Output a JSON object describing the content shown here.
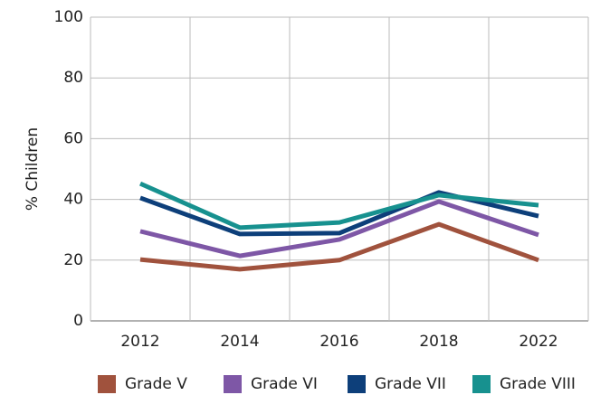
{
  "chart_data": {
    "type": "line",
    "y_label": "% Children",
    "categories": [
      "2012",
      "2014",
      "2016",
      "2018",
      "2022"
    ],
    "series": [
      {
        "name": "Grade V",
        "color": "#a0523d",
        "values": [
          20.2,
          17,
          20,
          31.8,
          20
        ]
      },
      {
        "name": "Grade VI",
        "color": "#7e57a6",
        "values": [
          29.5,
          21.4,
          26.8,
          39.3,
          28.3
        ]
      },
      {
        "name": "Grade VII",
        "color": "#0d3f7a",
        "values": [
          40.5,
          28.6,
          28.9,
          42.3,
          34.5
        ]
      },
      {
        "name": "Grade VIII",
        "color": "#17918f",
        "values": [
          45.2,
          30.7,
          32.4,
          41.4,
          38.1
        ]
      }
    ],
    "ylim": [
      0,
      100
    ],
    "yticks": [
      0,
      20,
      40,
      60,
      80,
      100
    ],
    "grid": true,
    "legend": "bottom"
  }
}
